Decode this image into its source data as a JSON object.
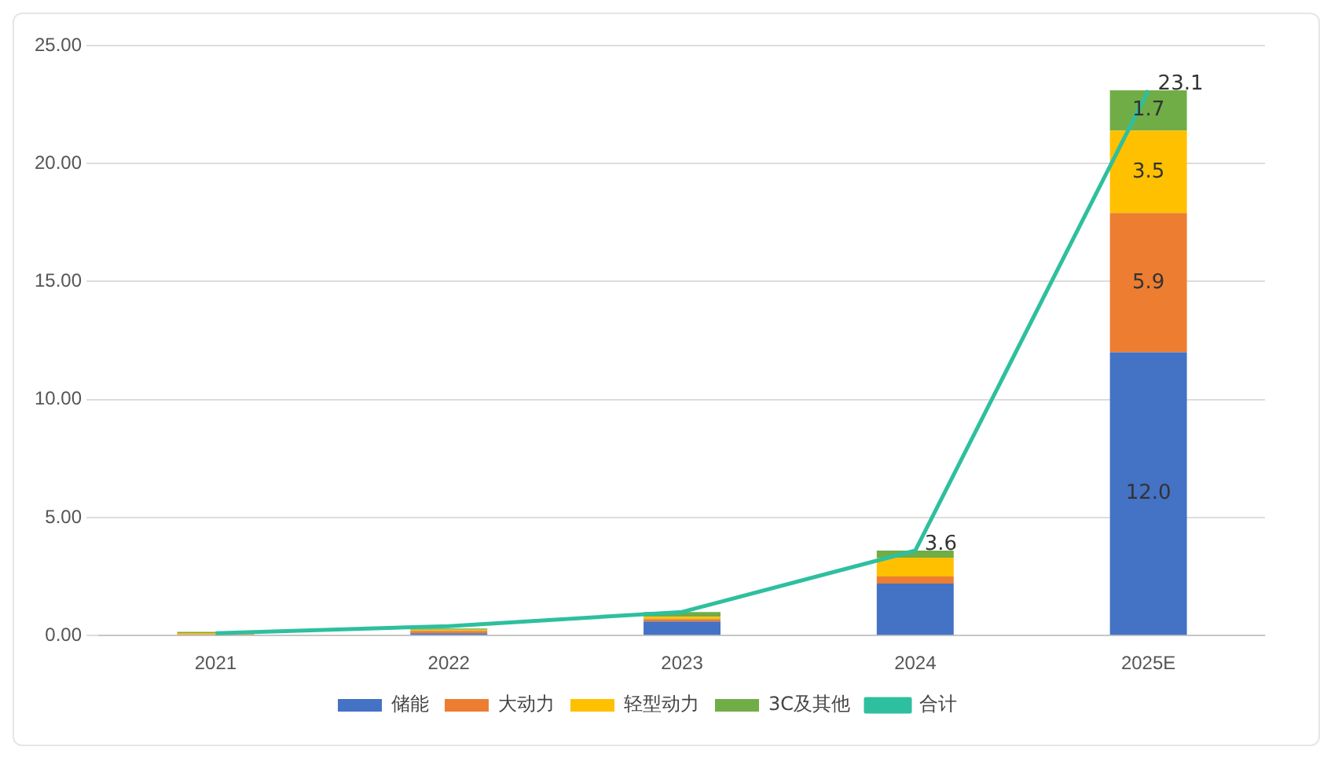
{
  "chart_data": {
    "type": "bar",
    "stacked": true,
    "categories": [
      "2021",
      "2022",
      "2023",
      "2024",
      "2025E"
    ],
    "series": [
      {
        "name": "储能",
        "color": "#4472c4",
        "values": [
          0.03,
          0.1,
          0.6,
          2.2,
          12.0
        ],
        "value_labels": [
          null,
          null,
          null,
          null,
          "12.0"
        ]
      },
      {
        "name": "大动力",
        "color": "#ed7d31",
        "values": [
          0.03,
          0.1,
          0.1,
          0.3,
          5.9
        ],
        "value_labels": [
          null,
          null,
          null,
          null,
          "5.9"
        ]
      },
      {
        "name": "轻型动力",
        "color": "#ffc000",
        "values": [
          0.05,
          0.05,
          0.1,
          0.8,
          3.5
        ],
        "value_labels": [
          null,
          null,
          null,
          null,
          "3.5"
        ]
      },
      {
        "name": "3C及其他",
        "color": "#70ad47",
        "values": [
          0.05,
          0.05,
          0.2,
          0.3,
          1.7
        ],
        "value_labels": [
          null,
          null,
          null,
          null,
          "1.7"
        ]
      },
      {
        "name": "合计",
        "type": "line",
        "color": "#2ebf9f",
        "values": [
          0.1,
          0.4,
          1.0,
          3.6,
          23.1
        ],
        "value_labels": [
          null,
          null,
          null,
          "3.6",
          "23.1"
        ]
      }
    ],
    "ylim": [
      0,
      25
    ],
    "yticks": [
      {
        "value": 0,
        "label": "0.00"
      },
      {
        "value": 5,
        "label": "5.00"
      },
      {
        "value": 10,
        "label": "10.00"
      },
      {
        "value": 15,
        "label": "15.00"
      },
      {
        "value": 20,
        "label": "20.00"
      },
      {
        "value": 25,
        "label": "25.00"
      }
    ],
    "grid": "y",
    "legend": "bottom",
    "marker": "none"
  }
}
